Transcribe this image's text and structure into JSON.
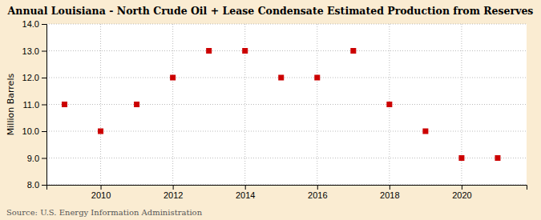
{
  "chart_data": {
    "type": "scatter",
    "title": "Annual Louisiana - North Crude Oil + Lease Condensate Estimated Production from Reserves",
    "ylabel": "Million Barrels",
    "annotations": [
      "Source: U.S. Energy Information Administration"
    ],
    "x": [
      2009,
      2010,
      2011,
      2012,
      2013,
      2014,
      2015,
      2016,
      2017,
      2018,
      2019,
      2020,
      2021
    ],
    "values": [
      11.0,
      10.0,
      11.0,
      12.0,
      13.0,
      13.0,
      12.0,
      12.0,
      13.0,
      11.0,
      10.0,
      9.0,
      9.0
    ],
    "xlim": [
      2008.5,
      2021.8
    ],
    "xticks": [
      2010,
      2012,
      2014,
      2016,
      2018,
      2020
    ],
    "ylim": [
      8.0,
      14.0
    ],
    "yticks": [
      {
        "value": 8.0,
        "label": "8.0"
      },
      {
        "value": 9.0,
        "label": "9.0"
      },
      {
        "value": 10.0,
        "label": "10.0"
      },
      {
        "value": 11.0,
        "label": "11.0"
      },
      {
        "value": 12.0,
        "label": "12.0"
      },
      {
        "value": 13.0,
        "label": "13.0"
      },
      {
        "value": 14.0,
        "label": "14.0"
      }
    ],
    "color": "#cc0000",
    "marker": "square",
    "grid": true
  }
}
